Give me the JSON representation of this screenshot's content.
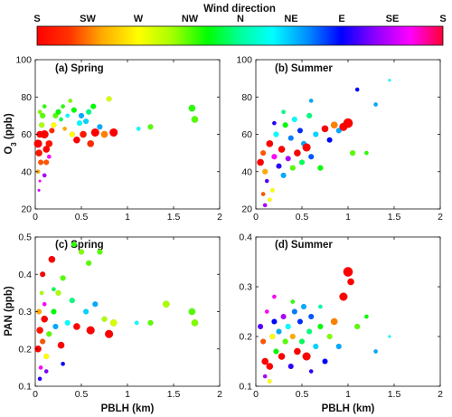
{
  "colorbar": {
    "title": "Wind direction",
    "labels": [
      "S",
      "SW",
      "W",
      "NW",
      "N",
      "NE",
      "E",
      "SE",
      "S"
    ]
  },
  "chart_data": [
    {
      "type": "scatter",
      "panel": "(a) Spring",
      "xlabel": "",
      "ylabel": "O3 (ppb)",
      "xlim": [
        0,
        2
      ],
      "ylim": [
        20,
        100
      ],
      "xticks": [
        "0",
        "0.5",
        "1",
        "1.5",
        "2"
      ],
      "yticks": [
        "20",
        "40",
        "60",
        "80",
        "100"
      ],
      "points": [
        {
          "x": 0.03,
          "y": 55,
          "hue": 0,
          "s": 6
        },
        {
          "x": 0.05,
          "y": 60,
          "hue": 0,
          "s": 5
        },
        {
          "x": 0.04,
          "y": 50,
          "hue": 5,
          "s": 5
        },
        {
          "x": 0.06,
          "y": 45,
          "hue": 20,
          "s": 4
        },
        {
          "x": 0.03,
          "y": 40,
          "hue": 40,
          "s": 3
        },
        {
          "x": 0.05,
          "y": 35,
          "hue": 300,
          "s": 2
        },
        {
          "x": 0.04,
          "y": 30,
          "hue": 290,
          "s": 2
        },
        {
          "x": 0.07,
          "y": 65,
          "hue": 80,
          "s": 4
        },
        {
          "x": 0.08,
          "y": 70,
          "hue": 100,
          "s": 4
        },
        {
          "x": 0.1,
          "y": 75,
          "hue": 110,
          "s": 3
        },
        {
          "x": 0.05,
          "y": 72,
          "hue": 90,
          "s": 3
        },
        {
          "x": 0.12,
          "y": 52,
          "hue": 0,
          "s": 5
        },
        {
          "x": 0.15,
          "y": 55,
          "hue": 5,
          "s": 5
        },
        {
          "x": 0.18,
          "y": 62,
          "hue": 10,
          "s": 4
        },
        {
          "x": 0.2,
          "y": 65,
          "hue": 60,
          "s": 4
        },
        {
          "x": 0.22,
          "y": 70,
          "hue": 100,
          "s": 4
        },
        {
          "x": 0.25,
          "y": 72,
          "hue": 120,
          "s": 4
        },
        {
          "x": 0.28,
          "y": 68,
          "hue": 140,
          "s": 3
        },
        {
          "x": 0.3,
          "y": 75,
          "hue": 110,
          "s": 3
        },
        {
          "x": 0.32,
          "y": 63,
          "hue": 40,
          "s": 3
        },
        {
          "x": 0.35,
          "y": 70,
          "hue": 180,
          "s": 3
        },
        {
          "x": 0.38,
          "y": 78,
          "hue": 90,
          "s": 3
        },
        {
          "x": 0.4,
          "y": 60,
          "hue": 60,
          "s": 4
        },
        {
          "x": 0.42,
          "y": 73,
          "hue": 120,
          "s": 4
        },
        {
          "x": 0.45,
          "y": 57,
          "hue": 0,
          "s": 5
        },
        {
          "x": 0.48,
          "y": 66,
          "hue": 180,
          "s": 4
        },
        {
          "x": 0.5,
          "y": 70,
          "hue": 200,
          "s": 4
        },
        {
          "x": 0.52,
          "y": 60,
          "hue": 5,
          "s": 5
        },
        {
          "x": 0.55,
          "y": 67,
          "hue": 190,
          "s": 4
        },
        {
          "x": 0.58,
          "y": 72,
          "hue": 150,
          "s": 4
        },
        {
          "x": 0.6,
          "y": 55,
          "hue": 10,
          "s": 5
        },
        {
          "x": 0.63,
          "y": 75,
          "hue": 120,
          "s": 4
        },
        {
          "x": 0.65,
          "y": 61,
          "hue": 0,
          "s": 6
        },
        {
          "x": 0.7,
          "y": 64,
          "hue": 200,
          "s": 4
        },
        {
          "x": 0.75,
          "y": 60,
          "hue": 30,
          "s": 5
        },
        {
          "x": 0.8,
          "y": 79,
          "hue": 70,
          "s": 4
        },
        {
          "x": 0.85,
          "y": 61,
          "hue": 0,
          "s": 6
        },
        {
          "x": 1.12,
          "y": 63,
          "hue": 180,
          "s": 3
        },
        {
          "x": 1.25,
          "y": 64,
          "hue": 100,
          "s": 4
        },
        {
          "x": 1.7,
          "y": 74,
          "hue": 110,
          "s": 5
        },
        {
          "x": 1.73,
          "y": 68,
          "hue": 100,
          "s": 5
        },
        {
          "x": 0.1,
          "y": 60,
          "hue": 0,
          "s": 6
        },
        {
          "x": 0.12,
          "y": 45,
          "hue": 20,
          "s": 4
        },
        {
          "x": 0.15,
          "y": 48,
          "hue": 300,
          "s": 3
        },
        {
          "x": 0.1,
          "y": 38,
          "hue": 280,
          "s": 3
        }
      ]
    },
    {
      "type": "scatter",
      "panel": "(b) Summer",
      "xlabel": "",
      "ylabel": "",
      "xlim": [
        0,
        2
      ],
      "ylim": [
        20,
        100
      ],
      "xticks": [
        "0",
        "0.5",
        "1",
        "1.5",
        "2"
      ],
      "yticks": [
        "20",
        "40",
        "60",
        "80",
        "100"
      ],
      "points": [
        {
          "x": 0.05,
          "y": 45,
          "hue": 0,
          "s": 5
        },
        {
          "x": 0.08,
          "y": 50,
          "hue": 20,
          "s": 4
        },
        {
          "x": 0.1,
          "y": 40,
          "hue": 40,
          "s": 4
        },
        {
          "x": 0.12,
          "y": 35,
          "hue": 260,
          "s": 3
        },
        {
          "x": 0.15,
          "y": 55,
          "hue": 0,
          "s": 5
        },
        {
          "x": 0.18,
          "y": 30,
          "hue": 60,
          "s": 3
        },
        {
          "x": 0.2,
          "y": 48,
          "hue": 300,
          "s": 4
        },
        {
          "x": 0.22,
          "y": 60,
          "hue": 180,
          "s": 4
        },
        {
          "x": 0.25,
          "y": 43,
          "hue": 250,
          "s": 4
        },
        {
          "x": 0.28,
          "y": 52,
          "hue": 0,
          "s": 5
        },
        {
          "x": 0.3,
          "y": 38,
          "hue": 200,
          "s": 4
        },
        {
          "x": 0.32,
          "y": 65,
          "hue": 120,
          "s": 4
        },
        {
          "x": 0.35,
          "y": 47,
          "hue": 280,
          "s": 4
        },
        {
          "x": 0.38,
          "y": 58,
          "hue": 210,
          "s": 4
        },
        {
          "x": 0.4,
          "y": 42,
          "hue": 100,
          "s": 4
        },
        {
          "x": 0.42,
          "y": 68,
          "hue": 180,
          "s": 4
        },
        {
          "x": 0.45,
          "y": 50,
          "hue": 0,
          "s": 5
        },
        {
          "x": 0.48,
          "y": 62,
          "hue": 230,
          "s": 4
        },
        {
          "x": 0.5,
          "y": 45,
          "hue": 140,
          "s": 4
        },
        {
          "x": 0.52,
          "y": 55,
          "hue": 200,
          "s": 4
        },
        {
          "x": 0.55,
          "y": 53,
          "hue": 0,
          "s": 6
        },
        {
          "x": 0.58,
          "y": 70,
          "hue": 150,
          "s": 4
        },
        {
          "x": 0.6,
          "y": 48,
          "hue": 220,
          "s": 4
        },
        {
          "x": 0.65,
          "y": 60,
          "hue": 190,
          "s": 4
        },
        {
          "x": 0.7,
          "y": 42,
          "hue": 120,
          "s": 4
        },
        {
          "x": 0.75,
          "y": 63,
          "hue": 0,
          "s": 5
        },
        {
          "x": 0.8,
          "y": 57,
          "hue": 240,
          "s": 4
        },
        {
          "x": 0.85,
          "y": 65,
          "hue": 30,
          "s": 5
        },
        {
          "x": 0.9,
          "y": 62,
          "hue": 200,
          "s": 4
        },
        {
          "x": 0.95,
          "y": 64,
          "hue": 0,
          "s": 6
        },
        {
          "x": 1.0,
          "y": 66,
          "hue": 0,
          "s": 7
        },
        {
          "x": 1.05,
          "y": 50,
          "hue": 100,
          "s": 4
        },
        {
          "x": 1.1,
          "y": 84,
          "hue": 240,
          "s": 3
        },
        {
          "x": 1.2,
          "y": 50,
          "hue": 110,
          "s": 3
        },
        {
          "x": 1.3,
          "y": 76,
          "hue": 200,
          "s": 3
        },
        {
          "x": 1.45,
          "y": 89,
          "hue": 180,
          "s": 2
        },
        {
          "x": 0.1,
          "y": 22,
          "hue": 280,
          "s": 3
        },
        {
          "x": 0.15,
          "y": 25,
          "hue": 60,
          "s": 3
        },
        {
          "x": 0.08,
          "y": 28,
          "hue": 20,
          "s": 3
        },
        {
          "x": 0.3,
          "y": 72,
          "hue": 150,
          "s": 3
        },
        {
          "x": 0.6,
          "y": 78,
          "hue": 200,
          "s": 3
        },
        {
          "x": 0.2,
          "y": 66,
          "hue": 250,
          "s": 3
        }
      ]
    },
    {
      "type": "scatter",
      "panel": "(c) Spring",
      "xlabel": "PBLH (km)",
      "ylabel": "PAN (ppb)",
      "xlim": [
        0,
        2
      ],
      "ylim": [
        0.1,
        0.5
      ],
      "xticks": [
        "0",
        "0.5",
        "1",
        "1.5",
        "2"
      ],
      "yticks": [
        "0.1",
        "0.2",
        "0.3",
        "0.4",
        "0.5"
      ],
      "points": [
        {
          "x": 0.03,
          "y": 0.2,
          "hue": 0,
          "s": 5
        },
        {
          "x": 0.05,
          "y": 0.25,
          "hue": 5,
          "s": 5
        },
        {
          "x": 0.04,
          "y": 0.3,
          "hue": 40,
          "s": 4
        },
        {
          "x": 0.06,
          "y": 0.15,
          "hue": 300,
          "s": 3
        },
        {
          "x": 0.05,
          "y": 0.12,
          "hue": 250,
          "s": 3
        },
        {
          "x": 0.07,
          "y": 0.35,
          "hue": 80,
          "s": 3
        },
        {
          "x": 0.08,
          "y": 0.22,
          "hue": 20,
          "s": 4
        },
        {
          "x": 0.1,
          "y": 0.28,
          "hue": 0,
          "s": 5
        },
        {
          "x": 0.12,
          "y": 0.18,
          "hue": 60,
          "s": 4
        },
        {
          "x": 0.15,
          "y": 0.24,
          "hue": 100,
          "s": 4
        },
        {
          "x": 0.18,
          "y": 0.44,
          "hue": 0,
          "s": 5
        },
        {
          "x": 0.2,
          "y": 0.3,
          "hue": 120,
          "s": 4
        },
        {
          "x": 0.22,
          "y": 0.26,
          "hue": 200,
          "s": 4
        },
        {
          "x": 0.25,
          "y": 0.35,
          "hue": 80,
          "s": 4
        },
        {
          "x": 0.28,
          "y": 0.21,
          "hue": 0,
          "s": 5
        },
        {
          "x": 0.3,
          "y": 0.39,
          "hue": 100,
          "s": 4
        },
        {
          "x": 0.35,
          "y": 0.27,
          "hue": 180,
          "s": 4
        },
        {
          "x": 0.4,
          "y": 0.33,
          "hue": 150,
          "s": 4
        },
        {
          "x": 0.42,
          "y": 0.48,
          "hue": 110,
          "s": 4
        },
        {
          "x": 0.45,
          "y": 0.26,
          "hue": 0,
          "s": 5
        },
        {
          "x": 0.5,
          "y": 0.46,
          "hue": 90,
          "s": 4
        },
        {
          "x": 0.55,
          "y": 0.3,
          "hue": 190,
          "s": 4
        },
        {
          "x": 0.58,
          "y": 0.43,
          "hue": 100,
          "s": 4
        },
        {
          "x": 0.6,
          "y": 0.25,
          "hue": 0,
          "s": 6
        },
        {
          "x": 0.65,
          "y": 0.32,
          "hue": 200,
          "s": 4
        },
        {
          "x": 0.7,
          "y": 0.46,
          "hue": 100,
          "s": 4
        },
        {
          "x": 0.75,
          "y": 0.28,
          "hue": 80,
          "s": 4
        },
        {
          "x": 0.8,
          "y": 0.24,
          "hue": 0,
          "s": 6
        },
        {
          "x": 0.85,
          "y": 0.27,
          "hue": 70,
          "s": 5
        },
        {
          "x": 1.1,
          "y": 0.27,
          "hue": 180,
          "s": 3
        },
        {
          "x": 1.25,
          "y": 0.27,
          "hue": 100,
          "s": 4
        },
        {
          "x": 1.42,
          "y": 0.32,
          "hue": 80,
          "s": 5
        },
        {
          "x": 1.7,
          "y": 0.3,
          "hue": 100,
          "s": 5
        },
        {
          "x": 1.73,
          "y": 0.27,
          "hue": 90,
          "s": 5
        },
        {
          "x": 0.1,
          "y": 0.32,
          "hue": 300,
          "s": 3
        },
        {
          "x": 0.12,
          "y": 0.14,
          "hue": 270,
          "s": 3
        },
        {
          "x": 0.3,
          "y": 0.16,
          "hue": 240,
          "s": 3
        },
        {
          "x": 0.2,
          "y": 0.36,
          "hue": 140,
          "s": 3
        },
        {
          "x": 0.08,
          "y": 0.4,
          "hue": 0,
          "s": 4
        }
      ]
    },
    {
      "type": "scatter",
      "panel": "(d) Summer",
      "xlabel": "PBLH (km)",
      "ylabel": "",
      "xlim": [
        0,
        2
      ],
      "ylim": [
        0.1,
        0.4
      ],
      "xticks": [
        "0",
        "0.5",
        "1",
        "1.5",
        "2"
      ],
      "yticks": [
        "0.1",
        "0.2",
        "0.3",
        "0.4"
      ],
      "points": [
        {
          "x": 0.05,
          "y": 0.22,
          "hue": 260,
          "s": 4
        },
        {
          "x": 0.08,
          "y": 0.19,
          "hue": 20,
          "s": 4
        },
        {
          "x": 0.1,
          "y": 0.15,
          "hue": 0,
          "s": 5
        },
        {
          "x": 0.12,
          "y": 0.25,
          "hue": 300,
          "s": 3
        },
        {
          "x": 0.15,
          "y": 0.14,
          "hue": 0,
          "s": 5
        },
        {
          "x": 0.18,
          "y": 0.2,
          "hue": 60,
          "s": 4
        },
        {
          "x": 0.2,
          "y": 0.23,
          "hue": 240,
          "s": 4
        },
        {
          "x": 0.22,
          "y": 0.17,
          "hue": 120,
          "s": 4
        },
        {
          "x": 0.25,
          "y": 0.21,
          "hue": 200,
          "s": 4
        },
        {
          "x": 0.28,
          "y": 0.16,
          "hue": 0,
          "s": 5
        },
        {
          "x": 0.3,
          "y": 0.24,
          "hue": 280,
          "s": 4
        },
        {
          "x": 0.32,
          "y": 0.19,
          "hue": 100,
          "s": 4
        },
        {
          "x": 0.35,
          "y": 0.22,
          "hue": 180,
          "s": 4
        },
        {
          "x": 0.38,
          "y": 0.14,
          "hue": 250,
          "s": 4
        },
        {
          "x": 0.4,
          "y": 0.2,
          "hue": 40,
          "s": 4
        },
        {
          "x": 0.42,
          "y": 0.25,
          "hue": 210,
          "s": 4
        },
        {
          "x": 0.45,
          "y": 0.17,
          "hue": 0,
          "s": 5
        },
        {
          "x": 0.48,
          "y": 0.23,
          "hue": 230,
          "s": 4
        },
        {
          "x": 0.5,
          "y": 0.19,
          "hue": 140,
          "s": 4
        },
        {
          "x": 0.52,
          "y": 0.26,
          "hue": 200,
          "s": 4
        },
        {
          "x": 0.55,
          "y": 0.16,
          "hue": 0,
          "s": 6
        },
        {
          "x": 0.58,
          "y": 0.21,
          "hue": 150,
          "s": 4
        },
        {
          "x": 0.6,
          "y": 0.24,
          "hue": 220,
          "s": 4
        },
        {
          "x": 0.65,
          "y": 0.18,
          "hue": 190,
          "s": 4
        },
        {
          "x": 0.7,
          "y": 0.22,
          "hue": 120,
          "s": 4
        },
        {
          "x": 0.75,
          "y": 0.15,
          "hue": 240,
          "s": 4
        },
        {
          "x": 0.8,
          "y": 0.2,
          "hue": 90,
          "s": 4
        },
        {
          "x": 0.85,
          "y": 0.23,
          "hue": 30,
          "s": 5
        },
        {
          "x": 0.9,
          "y": 0.18,
          "hue": 200,
          "s": 4
        },
        {
          "x": 0.95,
          "y": 0.28,
          "hue": 0,
          "s": 6
        },
        {
          "x": 1.0,
          "y": 0.33,
          "hue": 0,
          "s": 7
        },
        {
          "x": 1.03,
          "y": 0.31,
          "hue": 0,
          "s": 5
        },
        {
          "x": 1.1,
          "y": 0.22,
          "hue": 100,
          "s": 4
        },
        {
          "x": 1.2,
          "y": 0.24,
          "hue": 120,
          "s": 3
        },
        {
          "x": 1.3,
          "y": 0.17,
          "hue": 200,
          "s": 3
        },
        {
          "x": 1.45,
          "y": 0.2,
          "hue": 180,
          "s": 2
        },
        {
          "x": 0.1,
          "y": 0.12,
          "hue": 280,
          "s": 3
        },
        {
          "x": 0.2,
          "y": 0.28,
          "hue": 300,
          "s": 3
        },
        {
          "x": 0.15,
          "y": 0.11,
          "hue": 60,
          "s": 3
        },
        {
          "x": 0.6,
          "y": 0.13,
          "hue": 250,
          "s": 3
        },
        {
          "x": 0.4,
          "y": 0.27,
          "hue": 110,
          "s": 3
        },
        {
          "x": 0.7,
          "y": 0.26,
          "hue": 160,
          "s": 3
        }
      ]
    }
  ]
}
